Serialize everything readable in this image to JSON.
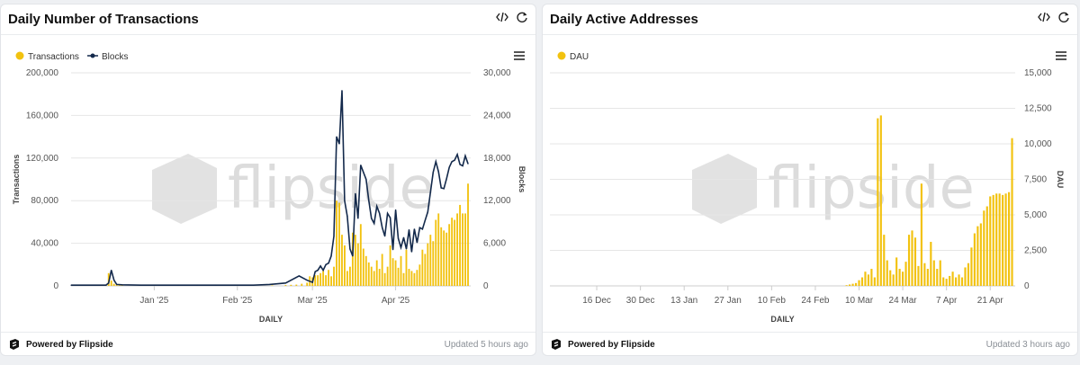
{
  "panels": [
    {
      "title": "Daily Number of Transactions",
      "footer": {
        "powered": "Powered by Flipside",
        "updated": "Updated 5 hours ago"
      },
      "watermark": "flipside",
      "icons": [
        "embed-code-icon",
        "refresh-icon",
        "hamburger-menu-icon",
        "flipside-logo-icon"
      ]
    },
    {
      "title": "Daily Active Addresses",
      "footer": {
        "powered": "Powered by Flipside",
        "updated": "Updated 3 hours ago"
      },
      "watermark": "flipside",
      "icons": [
        "embed-code-icon",
        "refresh-icon",
        "hamburger-menu-icon",
        "flipside-logo-icon"
      ]
    }
  ],
  "colors": {
    "transactions": "#f2c20f",
    "blocks": "#13294b",
    "dau": "#f2c20f",
    "grid": "#e6e6e6"
  },
  "chart_data": [
    {
      "type": "bar+line",
      "title": "Daily Number of Transactions",
      "xlabel": "DAILY",
      "ylabel": "Transactions",
      "y2label": "Blocks",
      "legend_position": "top-left",
      "grid": true,
      "x_tick_labels": [
        "Jan '25",
        "Feb '25",
        "Mar '25",
        "Apr '25"
      ],
      "x_tick_days": [
        31,
        62,
        90,
        121
      ],
      "ylim": [
        0,
        200000
      ],
      "y_ticks": [
        0,
        40000,
        80000,
        120000,
        160000,
        200000
      ],
      "y_tick_labels": [
        "0",
        "40,000",
        "80,000",
        "120,000",
        "160,000",
        "200,000"
      ],
      "y2lim": [
        0,
        30000
      ],
      "y2_ticks": [
        0,
        6000,
        12000,
        18000,
        24000,
        30000
      ],
      "y2_tick_labels": [
        "0",
        "6,000",
        "12,000",
        "18,000",
        "24,000",
        "30,000"
      ],
      "x_day_range": [
        0,
        149
      ],
      "series": [
        {
          "name": "Transactions",
          "type": "bar",
          "axis": "left",
          "x": [
            13,
            14,
            15,
            16,
            17,
            18,
            19,
            26,
            33,
            40,
            47,
            54,
            61,
            68,
            75,
            80,
            82,
            84,
            86,
            88,
            89,
            90,
            91,
            92,
            93,
            94,
            95,
            96,
            97,
            98,
            99,
            100,
            101,
            102,
            103,
            104,
            105,
            106,
            107,
            108,
            109,
            110,
            111,
            112,
            113,
            114,
            115,
            116,
            117,
            118,
            119,
            120,
            121,
            122,
            123,
            124,
            125,
            126,
            127,
            128,
            129,
            130,
            131,
            132,
            133,
            134,
            135,
            136,
            137,
            138,
            139,
            140,
            141,
            142,
            143,
            144,
            145,
            146,
            147,
            148
          ],
          "y": [
            1000,
            12000,
            5000,
            2000,
            1500,
            1000,
            800,
            500,
            500,
            500,
            500,
            500,
            500,
            500,
            500,
            800,
            1000,
            1200,
            2000,
            3000,
            9000,
            8000,
            10000,
            10000,
            12000,
            14000,
            10000,
            15000,
            9000,
            18000,
            80000,
            78000,
            48000,
            38000,
            14000,
            18000,
            50000,
            48000,
            40000,
            58000,
            35000,
            28000,
            22000,
            18000,
            14000,
            24000,
            16000,
            30000,
            12000,
            18000,
            38000,
            26000,
            24000,
            17000,
            28000,
            12000,
            34000,
            16000,
            14000,
            12000,
            15000,
            20000,
            34000,
            30000,
            40000,
            48000,
            42000,
            62000,
            68000,
            55000,
            52000,
            50000,
            58000,
            64000,
            62000,
            68000,
            76000,
            68000,
            68000,
            96000
          ]
        },
        {
          "name": "Blocks",
          "type": "line",
          "axis": "right",
          "x": [
            0,
            13,
            14,
            15,
            16,
            17,
            19,
            26,
            33,
            40,
            47,
            54,
            61,
            68,
            74,
            80,
            85,
            88,
            90,
            91,
            92,
            93,
            94,
            95,
            96,
            97,
            98,
            99,
            100,
            101,
            102,
            103,
            104,
            105,
            106,
            107,
            108,
            109,
            110,
            111,
            112,
            113,
            114,
            115,
            116,
            117,
            118,
            119,
            120,
            121,
            122,
            123,
            124,
            125,
            126,
            127,
            128,
            129,
            130,
            131,
            132,
            133,
            134,
            135,
            136,
            137,
            138,
            139,
            140,
            141,
            142,
            143,
            144,
            145,
            146,
            147,
            148
          ],
          "y": [
            100,
            100,
            400,
            2200,
            800,
            200,
            150,
            100,
            100,
            100,
            100,
            100,
            100,
            100,
            200,
            400,
            1400,
            800,
            500,
            2000,
            2200,
            2800,
            2200,
            3000,
            3200,
            4200,
            7000,
            21000,
            20000,
            27500,
            12000,
            9800,
            5200,
            4200,
            13000,
            9500,
            17000,
            16000,
            15000,
            12000,
            9500,
            8800,
            11200,
            10200,
            8200,
            7000,
            10200,
            9600,
            5100,
            10700,
            6700,
            5400,
            6800,
            5200,
            7900,
            4800,
            8000,
            6100,
            8200,
            8000,
            9200,
            10400,
            13200,
            16000,
            17500,
            16100,
            13800,
            13700,
            15100,
            16700,
            17500,
            17700,
            18500,
            17100,
            16900,
            18300,
            17200
          ]
        }
      ]
    },
    {
      "type": "bar",
      "title": "Daily Active Addresses",
      "xlabel": "DAILY",
      "ylabel": "DAU",
      "legend_position": "top-left",
      "grid": true,
      "x_tick_labels": [
        "16 Dec",
        "30 Dec",
        "13 Jan",
        "27 Jan",
        "10 Feb",
        "24 Feb",
        "10 Mar",
        "24 Mar",
        "7 Apr",
        "21 Apr"
      ],
      "x_tick_days": [
        15,
        29,
        43,
        57,
        71,
        85,
        99,
        113,
        127,
        141
      ],
      "ylim": [
        0,
        15000
      ],
      "y_ticks": [
        0,
        2500,
        5000,
        7500,
        10000,
        12500,
        15000
      ],
      "y_tick_labels": [
        "0",
        "2,500",
        "5,000",
        "7,500",
        "10,000",
        "12,500",
        "15,000"
      ],
      "x_day_range": [
        0,
        149
      ],
      "series": [
        {
          "name": "DAU",
          "axis": "left",
          "x": [
            95,
            96,
            97,
            98,
            99,
            100,
            101,
            102,
            103,
            104,
            105,
            106,
            107,
            108,
            109,
            110,
            111,
            112,
            113,
            114,
            115,
            116,
            117,
            118,
            119,
            120,
            121,
            122,
            123,
            124,
            125,
            126,
            127,
            128,
            129,
            130,
            131,
            132,
            133,
            134,
            135,
            136,
            137,
            138,
            139,
            140,
            141,
            142,
            143,
            144,
            145,
            146,
            147,
            148
          ],
          "y": [
            50,
            100,
            150,
            200,
            400,
            600,
            1000,
            800,
            1200,
            600,
            11800,
            12000,
            3600,
            1800,
            1100,
            800,
            2000,
            1200,
            1000,
            1700,
            3600,
            3900,
            3400,
            1400,
            7200,
            1600,
            1200,
            3100,
            1800,
            1200,
            1800,
            600,
            500,
            700,
            1000,
            600,
            800,
            600,
            1300,
            1600,
            2700,
            3700,
            4200,
            4400,
            5300,
            5600,
            6300,
            6400,
            6500,
            6500,
            6400,
            6500,
            6600,
            10400
          ]
        }
      ]
    }
  ]
}
